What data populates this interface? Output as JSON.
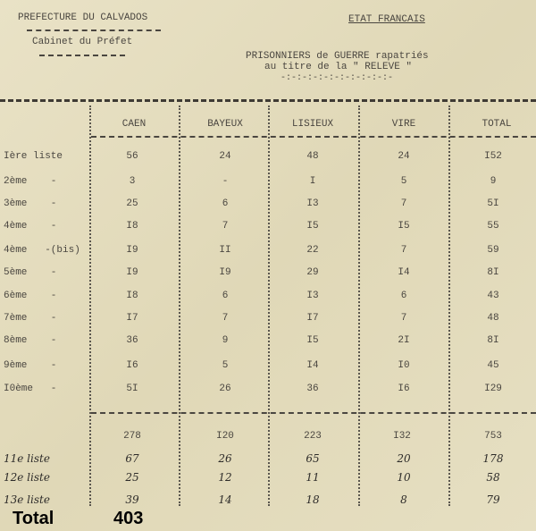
{
  "header": {
    "left_title": "PREFECTURE DU CALVADOS",
    "left_subtitle": "Cabinet du Préfet",
    "right_title": "ETAT FRANCAIS",
    "doc_title_line1": "PRISONNIERS de GUERRE rapatriés",
    "doc_title_line2": "au titre de la \" RELEVE \"",
    "ornament": "-:-:-:-:-:-:-:-:-:-:-"
  },
  "table": {
    "columns": [
      "CAEN",
      "BAYEUX",
      "LISIEUX",
      "VIRE",
      "TOTAL"
    ],
    "rows": [
      {
        "label": "Ière liste",
        "values": [
          "56",
          "24",
          "48",
          "24",
          "I52"
        ]
      },
      {
        "label": "2ème    -",
        "values": [
          "3",
          "-",
          "I",
          "5",
          "9"
        ]
      },
      {
        "label": "3ème    -",
        "values": [
          "25",
          "6",
          "I3",
          "7",
          "5I"
        ]
      },
      {
        "label": "4ème    -",
        "values": [
          "I8",
          "7",
          "I5",
          "I5",
          "55"
        ]
      },
      {
        "label": "4ème   -(bis)",
        "values": [
          "I9",
          "II",
          "22",
          "7",
          "59"
        ]
      },
      {
        "label": "5ème    -",
        "values": [
          "I9",
          "I9",
          "29",
          "I4",
          "8I"
        ]
      },
      {
        "label": "6ème    -",
        "values": [
          "I8",
          "6",
          "I3",
          "6",
          "43"
        ]
      },
      {
        "label": "7ème    -",
        "values": [
          "I7",
          "7",
          "I7",
          "7",
          "48"
        ]
      },
      {
        "label": "8ème    -",
        "values": [
          "36",
          "9",
          "I5",
          "2I",
          "8I"
        ]
      },
      {
        "label": "9ème    -",
        "values": [
          "I6",
          "5",
          "I4",
          "I0",
          "45"
        ]
      },
      {
        "label": "I0ème   -",
        "values": [
          "5I",
          "26",
          "36",
          "I6",
          "I29"
        ]
      }
    ],
    "subtotal": [
      "278",
      "I20",
      "223",
      "I32",
      "753"
    ],
    "handwritten_rows": [
      {
        "label": "11e liste",
        "values": [
          "67",
          "26",
          "65",
          "20",
          "178"
        ]
      },
      {
        "label": "12e liste",
        "values": [
          "25",
          "12",
          "11",
          "10",
          "58"
        ]
      },
      {
        "label": "13e liste",
        "values": [
          "39",
          "14",
          "18",
          "8",
          "79"
        ]
      }
    ]
  },
  "footer": {
    "total_label": "Total",
    "total_value": "403"
  }
}
